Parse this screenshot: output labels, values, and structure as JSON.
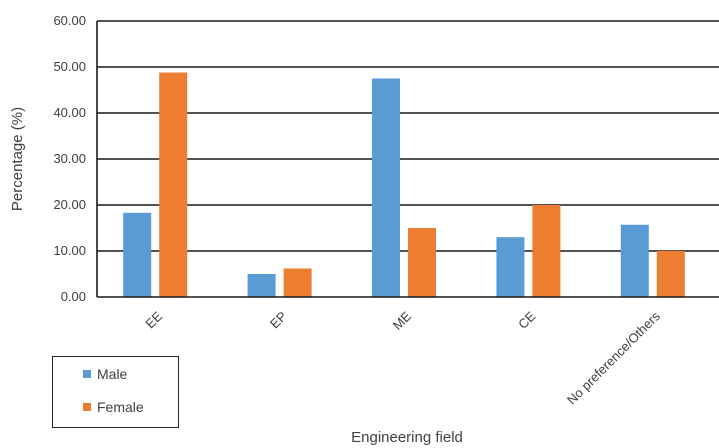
{
  "chart_data": {
    "type": "bar",
    "categories": [
      "EE",
      "EP",
      "ME",
      "CE",
      "No preference/Others"
    ],
    "series": [
      {
        "name": "Male",
        "values": [
          18.3,
          5.0,
          47.5,
          13.0,
          15.7
        ],
        "color": "#5B9BD5"
      },
      {
        "name": "Female",
        "values": [
          48.8,
          6.2,
          15.0,
          20.0,
          10.0
        ],
        "color": "#ED7D31"
      }
    ],
    "yticks": [
      "0.00",
      "10.00",
      "20.00",
      "30.00",
      "40.00",
      "50.00",
      "60.00"
    ],
    "ylim": [
      0,
      60
    ],
    "xlabel": "Engineering field",
    "ylabel": "Percentage (%)",
    "title": "",
    "grid": true,
    "legend_position": "bottom-left"
  }
}
